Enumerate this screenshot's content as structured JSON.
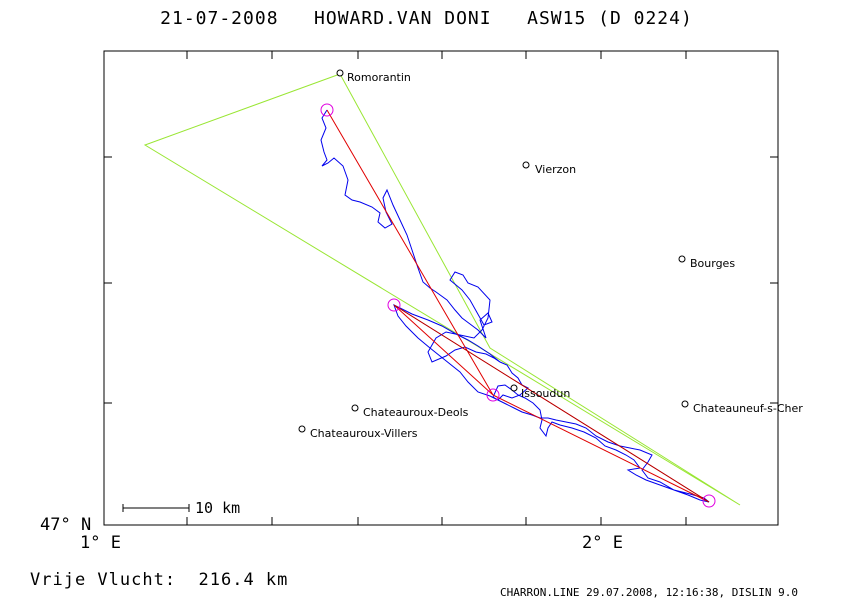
{
  "header": {
    "title": "21-07-2008   HOWARD.VAN DONI   ASW15 (D 0224)"
  },
  "axes": {
    "lat_label": "47° N",
    "lon_labels": [
      "1° E",
      "2° E"
    ]
  },
  "scale_bar": {
    "label": "10 km"
  },
  "footer": {
    "free_flight": "Vrije Vlucht:  216.4 km",
    "credits": "CHARRON.LINE 29.07.2008, 12:16:38, DISLIN 9.0"
  },
  "places": [
    {
      "name": "Romorantin"
    },
    {
      "name": "Vierzon"
    },
    {
      "name": "Bourges"
    },
    {
      "name": "Issoudun"
    },
    {
      "name": "Chateauroux-Deols"
    },
    {
      "name": "Chateauroux-Villers"
    },
    {
      "name": "Chateauneuf-s-Cher"
    }
  ],
  "colors": {
    "task": "#99e633",
    "route": "#e00000",
    "track": "#0000ee",
    "turnpoint": "#e000e0"
  }
}
